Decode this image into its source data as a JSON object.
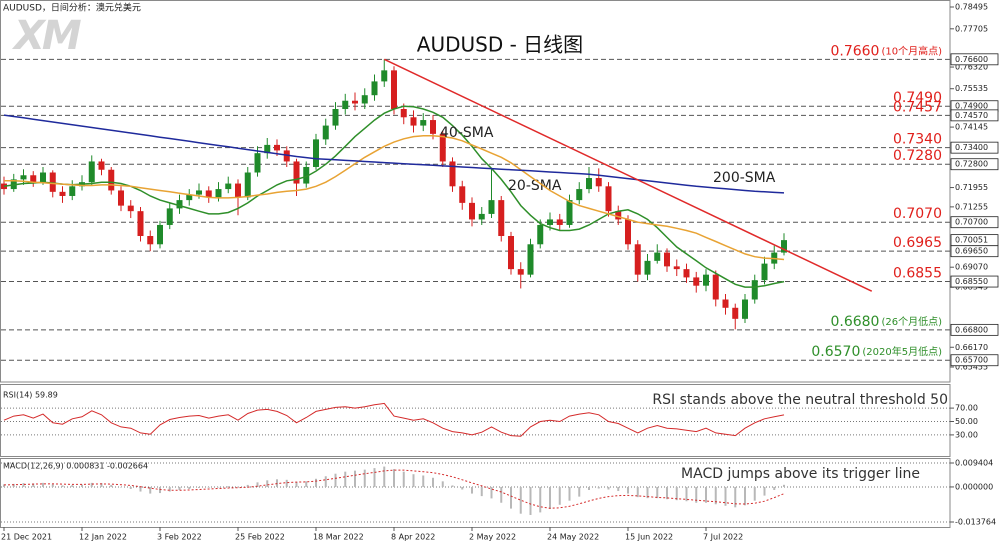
{
  "chart_data": [
    {
      "type": "candlestick",
      "title": "AUDUSD - 日线图",
      "subtitle": "AUDUSD，日间分析：澳元兑美元",
      "logo": "XM",
      "categories": [
        "21 Dec 2021",
        null,
        null,
        null,
        null,
        null,
        null,
        null,
        "12 Jan 2022",
        null,
        null,
        null,
        null,
        null,
        null,
        null,
        "3 Feb 2022",
        null,
        null,
        null,
        null,
        null,
        null,
        null,
        "25 Feb 2022",
        null,
        null,
        null,
        null,
        null,
        null,
        null,
        "18 Mar 2022",
        null,
        null,
        null,
        null,
        null,
        null,
        null,
        "8 Apr 2022",
        null,
        null,
        null,
        null,
        null,
        null,
        null,
        "2 May 2022",
        null,
        null,
        null,
        null,
        null,
        null,
        null,
        "24 May 2022",
        null,
        null,
        null,
        null,
        null,
        null,
        null,
        "15 Jun 2022",
        null,
        null,
        null,
        null,
        null,
        null,
        null,
        "7 Jul 2022",
        null,
        null,
        null,
        null,
        null,
        null,
        null,
        null
      ],
      "open": [
        0.721,
        0.719,
        0.7225,
        0.724,
        0.7215,
        0.725,
        0.718,
        0.7165,
        0.72,
        0.7215,
        0.729,
        0.726,
        0.7185,
        0.713,
        0.711,
        0.702,
        0.699,
        0.706,
        0.712,
        0.715,
        0.717,
        0.7185,
        0.716,
        0.719,
        0.721,
        0.716,
        0.725,
        0.732,
        0.735,
        0.733,
        0.729,
        0.721,
        0.727,
        0.737,
        0.742,
        0.748,
        0.751,
        0.75,
        0.753,
        0.758,
        0.762,
        0.748,
        0.745,
        0.742,
        0.744,
        0.739,
        0.729,
        0.72,
        0.714,
        0.708,
        0.71,
        0.715,
        0.702,
        0.69,
        0.688,
        0.699,
        0.706,
        0.708,
        0.706,
        0.715,
        0.719,
        0.723,
        0.72,
        0.711,
        0.708,
        0.699,
        0.688,
        0.693,
        0.696,
        0.691,
        0.69,
        0.687,
        0.684,
        0.688,
        0.679,
        0.676,
        0.672,
        0.679,
        0.686,
        0.692,
        0.696
      ],
      "high": [
        0.7235,
        0.7245,
        0.7262,
        0.7255,
        0.727,
        0.7258,
        0.72,
        0.7222,
        0.724,
        0.7312,
        0.73,
        0.727,
        0.72,
        0.715,
        0.7125,
        0.704,
        0.7075,
        0.714,
        0.717,
        0.719,
        0.721,
        0.72,
        0.7215,
        0.7235,
        0.7225,
        0.727,
        0.7345,
        0.7375,
        0.737,
        0.7345,
        0.73,
        0.729,
        0.739,
        0.7445,
        0.7505,
        0.7535,
        0.754,
        0.7555,
        0.7605,
        0.766,
        0.7635,
        0.75,
        0.7475,
        0.7465,
        0.7458,
        0.74,
        0.7305,
        0.722,
        0.716,
        0.7125,
        0.7265,
        0.7165,
        0.7035,
        0.6925,
        0.701,
        0.708,
        0.7105,
        0.71,
        0.717,
        0.7215,
        0.727,
        0.7265,
        0.7215,
        0.713,
        0.7095,
        0.7005,
        0.6955,
        0.699,
        0.6975,
        0.6935,
        0.692,
        0.689,
        0.69,
        0.6895,
        0.681,
        0.6775,
        0.681,
        0.688,
        0.6945,
        0.6985,
        0.703
      ],
      "low": [
        0.717,
        0.718,
        0.7205,
        0.7198,
        0.7205,
        0.716,
        0.714,
        0.715,
        0.7185,
        0.7205,
        0.724,
        0.717,
        0.711,
        0.7085,
        0.7,
        0.6965,
        0.6975,
        0.7045,
        0.71,
        0.713,
        0.7155,
        0.714,
        0.7145,
        0.7175,
        0.7095,
        0.715,
        0.7235,
        0.73,
        0.731,
        0.727,
        0.7165,
        0.7195,
        0.726,
        0.735,
        0.7405,
        0.746,
        0.7475,
        0.748,
        0.751,
        0.756,
        0.746,
        0.7425,
        0.7395,
        0.74,
        0.737,
        0.727,
        0.718,
        0.7115,
        0.7055,
        0.706,
        0.7085,
        0.7,
        0.688,
        0.683,
        0.687,
        0.6975,
        0.704,
        0.704,
        0.705,
        0.7135,
        0.7175,
        0.718,
        0.709,
        0.706,
        0.697,
        0.6855,
        0.686,
        0.692,
        0.689,
        0.6875,
        0.685,
        0.6815,
        0.682,
        0.6765,
        0.6735,
        0.6682,
        0.6705,
        0.6775,
        0.6845,
        0.69,
        0.695
      ],
      "close": [
        0.719,
        0.7225,
        0.724,
        0.7215,
        0.725,
        0.718,
        0.7165,
        0.72,
        0.7215,
        0.729,
        0.726,
        0.7185,
        0.713,
        0.711,
        0.702,
        0.699,
        0.706,
        0.712,
        0.715,
        0.717,
        0.7185,
        0.716,
        0.719,
        0.721,
        0.716,
        0.725,
        0.732,
        0.735,
        0.733,
        0.729,
        0.721,
        0.727,
        0.737,
        0.742,
        0.748,
        0.751,
        0.75,
        0.753,
        0.758,
        0.762,
        0.748,
        0.745,
        0.742,
        0.744,
        0.739,
        0.729,
        0.72,
        0.714,
        0.708,
        0.71,
        0.715,
        0.702,
        0.69,
        0.688,
        0.699,
        0.706,
        0.708,
        0.706,
        0.715,
        0.719,
        0.723,
        0.72,
        0.711,
        0.708,
        0.699,
        0.688,
        0.693,
        0.696,
        0.691,
        0.69,
        0.687,
        0.684,
        0.688,
        0.679,
        0.676,
        0.672,
        0.679,
        0.686,
        0.692,
        0.696,
        0.70051
      ],
      "last_label": "0.70051",
      "up_color": "#1f8a2a",
      "down_color": "#d61f1f",
      "series": [
        {
          "name": "20-SMA",
          "color": "#2f8f2a",
          "values": [
            0.72,
            0.7205,
            0.721,
            0.7212,
            0.7215,
            0.7212,
            0.7208,
            0.7206,
            0.7208,
            0.721,
            0.7215,
            0.7215,
            0.721,
            0.72,
            0.7185,
            0.7165,
            0.715,
            0.714,
            0.713,
            0.712,
            0.711,
            0.71,
            0.71,
            0.7105,
            0.712,
            0.714,
            0.7165,
            0.7185,
            0.7205,
            0.722,
            0.7225,
            0.7235,
            0.7255,
            0.728,
            0.731,
            0.7345,
            0.738,
            0.741,
            0.744,
            0.7465,
            0.748,
            0.749,
            0.7488,
            0.748,
            0.7468,
            0.745,
            0.742,
            0.7385,
            0.7345,
            0.73,
            0.7265,
            0.7225,
            0.718,
            0.713,
            0.7095,
            0.7065,
            0.705,
            0.704,
            0.704,
            0.7045,
            0.706,
            0.708,
            0.71,
            0.711,
            0.7115,
            0.71,
            0.708,
            0.705,
            0.7015,
            0.698,
            0.6955,
            0.693,
            0.6905,
            0.6885,
            0.6865,
            0.6845,
            0.6835,
            0.6835,
            0.684,
            0.6848,
            0.6855
          ]
        },
        {
          "name": "40-SMA",
          "color": "#e8a334",
          "values": [
            0.722,
            0.722,
            0.7218,
            0.7215,
            0.7213,
            0.721,
            0.7208,
            0.7205,
            0.7203,
            0.7203,
            0.7205,
            0.7205,
            0.7203,
            0.72,
            0.7195,
            0.719,
            0.7185,
            0.718,
            0.7175,
            0.717,
            0.7165,
            0.716,
            0.7158,
            0.7158,
            0.716,
            0.7163,
            0.7168,
            0.7172,
            0.7178,
            0.7182,
            0.7185,
            0.719,
            0.72,
            0.7215,
            0.7235,
            0.7258,
            0.7282,
            0.7305,
            0.7325,
            0.7345,
            0.736,
            0.7372,
            0.738,
            0.7383,
            0.7383,
            0.738,
            0.7375,
            0.7365,
            0.735,
            0.7335,
            0.732,
            0.7305,
            0.7285,
            0.726,
            0.7235,
            0.721,
            0.7185,
            0.7165,
            0.7145,
            0.713,
            0.712,
            0.711,
            0.71,
            0.709,
            0.708,
            0.707,
            0.7065,
            0.706,
            0.7055,
            0.7048,
            0.704,
            0.703,
            0.7015,
            0.7,
            0.6985,
            0.697,
            0.6955,
            0.6945,
            0.694,
            0.6938,
            0.6935
          ]
        },
        {
          "name": "200-SMA",
          "color": "#1f2a9c",
          "values": [
            0.7458,
            0.7453,
            0.7448,
            0.7443,
            0.7438,
            0.7433,
            0.7428,
            0.7423,
            0.7418,
            0.7413,
            0.7408,
            0.7403,
            0.7398,
            0.7393,
            0.7388,
            0.7383,
            0.7378,
            0.7373,
            0.7368,
            0.7363,
            0.7358,
            0.7353,
            0.7348,
            0.7343,
            0.7338,
            0.7333,
            0.7328,
            0.7323,
            0.7318,
            0.7313,
            0.7308,
            0.7304,
            0.73,
            0.7298,
            0.7296,
            0.7294,
            0.7292,
            0.729,
            0.7288,
            0.7286,
            0.7284,
            0.7282,
            0.728,
            0.7278,
            0.7276,
            0.7274,
            0.7272,
            0.727,
            0.7268,
            0.7266,
            0.7264,
            0.7262,
            0.726,
            0.7258,
            0.7256,
            0.7254,
            0.7252,
            0.725,
            0.7248,
            0.7246,
            0.7244,
            0.724,
            0.7236,
            0.7232,
            0.7228,
            0.7224,
            0.722,
            0.7216,
            0.7212,
            0.7208,
            0.7204,
            0.72,
            0.7197,
            0.7194,
            0.7191,
            0.7188,
            0.7185,
            0.7182,
            0.718,
            0.7178,
            0.7176
          ]
        }
      ],
      "trendline": {
        "color": "#e02a2a",
        "x": [
          39,
          89
        ],
        "values": [
          0.766,
          0.682
        ]
      },
      "levels": [
        {
          "value": 0.766,
          "label": "0.7660",
          "note": "(10个月高点)",
          "axis_label": "0.76600",
          "color": "#e0201c"
        },
        {
          "value": 0.749,
          "label": "0.7490",
          "axis_label": "0.74900",
          "color": "#e0201c"
        },
        {
          "value": 0.7457,
          "label": "0.7457",
          "axis_label": "0.74570",
          "color": "#e0201c"
        },
        {
          "value": 0.734,
          "label": "0.7340",
          "axis_label": "0.73400",
          "color": "#e0201c"
        },
        {
          "value": 0.728,
          "label": "0.7280",
          "axis_label": "0.72800",
          "color": "#e0201c"
        },
        {
          "value": 0.707,
          "label": "0.7070",
          "axis_label": "0.70700",
          "color": "#e0201c"
        },
        {
          "value": 0.6965,
          "label": "0.6965",
          "axis_label": "0.69650",
          "color": "#e0201c"
        },
        {
          "value": 0.6855,
          "label": "0.6855",
          "axis_label": "0.68550",
          "color": "#e0201c"
        },
        {
          "value": 0.668,
          "label": "0.6680",
          "note": "(26个月低点)",
          "axis_label": "0.66800",
          "color": "#2f8f2a"
        },
        {
          "value": 0.657,
          "label": "0.6570",
          "note": "(2020年5月低点)",
          "axis_label": "0.65700",
          "color": "#2f8f2a"
        }
      ],
      "ylim": [
        0.65455,
        0.78495
      ],
      "yticks": [
        {
          "value": 0.78495,
          "label": "0.78495"
        },
        {
          "value": 0.77705,
          "label": "0.77705"
        },
        {
          "value": 0.7632,
          "label": "0.76320"
        },
        {
          "value": 0.75535,
          "label": "0.75535"
        },
        {
          "value": 0.74145,
          "label": "0.74145"
        },
        {
          "value": 0.71955,
          "label": "0.71955"
        },
        {
          "value": 0.71255,
          "label": "0.71255"
        },
        {
          "value": 0.6907,
          "label": "0.69070"
        },
        {
          "value": 0.68345,
          "label": "0.68345"
        },
        {
          "value": 0.6617,
          "label": "0.66170"
        },
        {
          "value": 0.65455,
          "label": "0.65455"
        }
      ],
      "grid": false
    },
    {
      "type": "line",
      "label": "RSI(14) 59.89",
      "annotation": "RSI stands above the neutral threshold 50",
      "color": "#d42a2a",
      "values": [
        52,
        58,
        60,
        55,
        61,
        48,
        46,
        54,
        57,
        66,
        60,
        48,
        42,
        40,
        33,
        31,
        45,
        53,
        56,
        58,
        59,
        55,
        58,
        60,
        52,
        62,
        67,
        68,
        65,
        59,
        48,
        56,
        65,
        68,
        71,
        72,
        70,
        72,
        75,
        77,
        58,
        55,
        52,
        54,
        48,
        40,
        35,
        33,
        30,
        34,
        42,
        34,
        29,
        28,
        42,
        50,
        52,
        50,
        58,
        61,
        63,
        60,
        50,
        47,
        40,
        33,
        40,
        44,
        40,
        39,
        37,
        35,
        40,
        33,
        31,
        29,
        40,
        48,
        54,
        57,
        59.89
      ],
      "ylim": [
        0,
        100
      ],
      "yticks": [
        {
          "value": 70,
          "label": "70.00"
        },
        {
          "value": 50,
          "label": "50.00"
        },
        {
          "value": 30,
          "label": "30.00"
        }
      ],
      "grid": true
    },
    {
      "type": "macd",
      "label": "MACD(12,26,9) 0.000831 -0.002664",
      "annotation": "MACD jumps above its trigger line",
      "series": [
        {
          "color": "#b8b8b8",
          "values": [
            0.001,
            0.0012,
            0.0015,
            0.0014,
            0.0016,
            0.001,
            0.0006,
            0.0007,
            0.0009,
            0.0016,
            0.0015,
            0.0008,
            0.0,
            -0.0008,
            -0.0018,
            -0.0026,
            -0.0024,
            -0.0018,
            -0.0012,
            -0.0008,
            -0.0004,
            -0.0003,
            0.0,
            0.0003,
            0.0001,
            0.0008,
            0.0018,
            0.0026,
            0.003,
            0.0028,
            0.002,
            0.0022,
            0.0032,
            0.0042,
            0.0052,
            0.006,
            0.0064,
            0.0068,
            0.0074,
            0.008,
            0.007,
            0.006,
            0.005,
            0.0045,
            0.0036,
            0.0022,
            0.0006,
            -0.001,
            -0.0026,
            -0.0036,
            -0.0045,
            -0.0062,
            -0.0085,
            -0.0105,
            -0.011,
            -0.01,
            -0.0086,
            -0.007,
            -0.0054,
            -0.0038,
            -0.0012,
            -0.0006,
            -0.001,
            -0.0016,
            -0.0026,
            -0.004,
            -0.0044,
            -0.0044,
            -0.0048,
            -0.0052,
            -0.0056,
            -0.0062,
            -0.0062,
            -0.0068,
            -0.0074,
            -0.008,
            -0.0072,
            -0.0054,
            -0.0034,
            -0.0012,
            0.000831
          ]
        },
        {
          "color": "#d42a2a",
          "values": [
            0.0008,
            0.0009,
            0.001,
            0.0011,
            0.0012,
            0.0012,
            0.0011,
            0.001,
            0.001,
            0.0011,
            0.0012,
            0.0011,
            0.0009,
            0.0006,
            0.0001,
            -0.0005,
            -0.001,
            -0.0013,
            -0.0013,
            -0.0012,
            -0.001,
            -0.0008,
            -0.0006,
            -0.0004,
            -0.0003,
            -0.0001,
            0.0003,
            0.0008,
            0.0013,
            0.0017,
            0.0019,
            0.002,
            0.0023,
            0.0028,
            0.0034,
            0.004,
            0.0046,
            0.0052,
            0.0057,
            0.0063,
            0.0066,
            0.0066,
            0.0063,
            0.006,
            0.0056,
            0.0049,
            0.004,
            0.0028,
            0.0016,
            0.0004,
            -0.0008,
            -0.002,
            -0.0036,
            -0.0052,
            -0.0067,
            -0.0078,
            -0.0084,
            -0.0082,
            -0.0076,
            -0.0066,
            -0.0055,
            -0.0045,
            -0.0038,
            -0.0034,
            -0.0033,
            -0.0035,
            -0.0038,
            -0.0041,
            -0.0043,
            -0.0046,
            -0.0049,
            -0.0052,
            -0.0055,
            -0.0058,
            -0.0062,
            -0.0066,
            -0.0067,
            -0.0064,
            -0.0056,
            -0.0042,
            -0.002664
          ]
        }
      ],
      "ylim": [
        -0.013764,
        0.009404
      ],
      "yticks": [
        {
          "value": 0.009404,
          "label": "0.009404"
        },
        {
          "value": 0,
          "label": "0.000000"
        },
        {
          "value": -0.013764,
          "label": "-0.013764"
        }
      ],
      "grid": true
    }
  ]
}
